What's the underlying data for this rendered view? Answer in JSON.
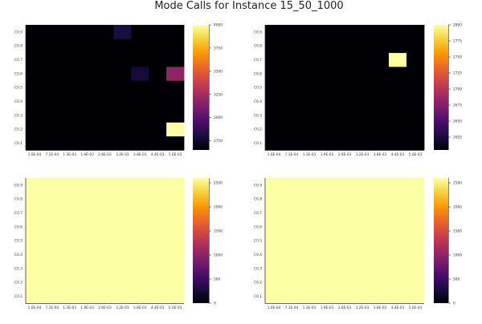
{
  "title": "Mode Calls for Instance 15_50_1000",
  "colormap": {
    "name": "inferno",
    "stops": [
      "#000004",
      "#1b0c41",
      "#4a0c6b",
      "#781c6d",
      "#a52c60",
      "#cf4446",
      "#ed6925",
      "#fb9b06",
      "#f7d13d",
      "#fcffa4"
    ]
  },
  "chart_data": [
    {
      "type": "heatmap",
      "panel": "top-left",
      "x_categories": [
        "1.0E-04",
        "7.1E-04",
        "1.3E-03",
        "1.9E-03",
        "2.6E-03",
        "3.2E-03",
        "3.8E-03",
        "4.4E-03",
        "5.0E-03"
      ],
      "y_categories": [
        "C0.1",
        "C0.2",
        "C0.3",
        "C0.4",
        "C0.5",
        "C0.6",
        "C0.7",
        "C0.8",
        "C0.9"
      ],
      "default_value": 2650,
      "cells": [
        {
          "x": "3.2E-03",
          "y": "C0.9",
          "value": 2800
        },
        {
          "x": "3.8E-03",
          "y": "C0.6",
          "value": 2780
        },
        {
          "x": "5.0E-03",
          "y": "C0.6",
          "value": 3180
        },
        {
          "x": "5.0E-03",
          "y": "C0.2",
          "value": 4000
        }
      ],
      "colorbar": {
        "min": 2650,
        "max": 4000,
        "ticks": [
          2750,
          3000,
          3250,
          3500,
          3750,
          4000
        ]
      }
    },
    {
      "type": "heatmap",
      "panel": "top-right",
      "x_categories": [
        "1.0E-04",
        "7.1E-04",
        "1.3E-03",
        "1.9E-03",
        "2.6E-03",
        "3.2E-03",
        "3.8E-03",
        "4.4E-03",
        "5.0E-03"
      ],
      "y_categories": [
        "C0.1",
        "C0.2",
        "C0.3",
        "C0.4",
        "C0.5",
        "C0.6",
        "C0.7",
        "C0.8",
        "C0.9"
      ],
      "default_value": 2605,
      "cells": [
        {
          "x": "4.4E-03",
          "y": "C0.7",
          "value": 2800
        }
      ],
      "colorbar": {
        "min": 2605,
        "max": 2800,
        "ticks": [
          2625,
          2650,
          2675,
          2700,
          2725,
          2750,
          2775,
          2800
        ]
      }
    },
    {
      "type": "heatmap",
      "panel": "bottom-left",
      "x_categories": [
        "1.0E-04",
        "7.1E-04",
        "1.3E-03",
        "1.9E-03",
        "2.6E-03",
        "3.2E-03",
        "3.8E-03",
        "4.4E-03",
        "5.0E-03"
      ],
      "y_categories": [
        "C0.1",
        "C0.2",
        "C0.3",
        "C0.4",
        "C0.5",
        "C0.6",
        "C0.7",
        "C0.8",
        "C0.9"
      ],
      "default_value": 2600,
      "cells": [],
      "colorbar": {
        "min": 0,
        "max": 2600,
        "ticks": [
          0,
          500,
          1000,
          1500,
          2000,
          2500
        ]
      }
    },
    {
      "type": "heatmap",
      "panel": "bottom-right",
      "x_categories": [
        "1.0E-04",
        "7.1E-04",
        "1.3E-03",
        "1.9E-03",
        "2.6E-03",
        "3.2E-03",
        "3.8E-03",
        "4.4E-03",
        "5.0E-03"
      ],
      "y_categories": [
        "C0.1",
        "C0.2",
        "C0.3",
        "C0.4",
        "C0.5",
        "C0.6",
        "C0.7",
        "C0.8",
        "C0.9"
      ],
      "default_value": 2600,
      "cells": [],
      "colorbar": {
        "min": 0,
        "max": 2600,
        "ticks": [
          0,
          500,
          1000,
          1500,
          2000,
          2500
        ]
      }
    }
  ]
}
